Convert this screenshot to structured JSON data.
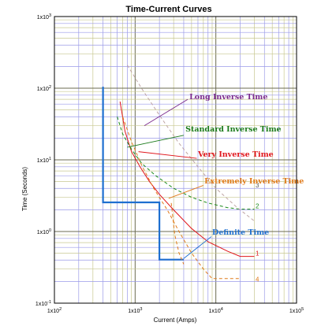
{
  "chart_data": {
    "type": "line",
    "title": "Time-Current Curves",
    "xlabel": "Current (Amps)",
    "ylabel": "Time (Seconds)",
    "x_scale": "log",
    "y_scale": "log",
    "xlim": [
      100,
      100000
    ],
    "ylim": [
      0.1,
      1000
    ],
    "grid": true,
    "x_ticks": [
      {
        "base": "1x10",
        "exp": "2"
      },
      {
        "base": "1x10",
        "exp": "3"
      },
      {
        "base": "1x10",
        "exp": "4"
      },
      {
        "base": "1x10",
        "exp": "5"
      }
    ],
    "y_ticks": [
      {
        "base": "1x10",
        "exp": "-1"
      },
      {
        "base": "1x10",
        "exp": "0"
      },
      {
        "base": "1x10",
        "exp": "1"
      },
      {
        "base": "1x10",
        "exp": "2"
      },
      {
        "base": "1x10",
        "exp": "3"
      }
    ],
    "series": [
      {
        "id": "definite",
        "color": "#1e6fd0",
        "dash": false,
        "width": 2.2,
        "points": [
          [
            400,
            105
          ],
          [
            400,
            2.55
          ],
          [
            2000,
            2.55
          ],
          [
            2000,
            0.405
          ],
          [
            4000,
            0.405
          ]
        ]
      },
      {
        "id": "curve1",
        "color": "#e0151b",
        "dash": false,
        "width": 1,
        "points": [
          [
            650,
            65
          ],
          [
            750,
            25
          ],
          [
            900,
            13
          ],
          [
            1150,
            8
          ],
          [
            1500,
            5
          ],
          [
            2000,
            3.3
          ],
          [
            3000,
            2
          ],
          [
            5000,
            1.1
          ],
          [
            8000,
            0.72
          ],
          [
            14000,
            0.53
          ],
          [
            20000,
            0.45
          ],
          [
            30000,
            0.45
          ]
        ]
      },
      {
        "id": "curve2",
        "color": "#1a8a1a",
        "dash": true,
        "width": 1,
        "points": [
          [
            600,
            40
          ],
          [
            700,
            23
          ],
          [
            900,
            14
          ],
          [
            1200,
            9
          ],
          [
            1800,
            6
          ],
          [
            3000,
            4
          ],
          [
            5000,
            3
          ],
          [
            8000,
            2.5
          ],
          [
            14000,
            2.15
          ],
          [
            20000,
            2.05
          ],
          [
            30000,
            2.05
          ]
        ]
      },
      {
        "id": "curve3",
        "color": "#bfa5a5",
        "dash": true,
        "width": 1,
        "points": [
          [
            800,
            210
          ],
          [
            1200,
            100
          ],
          [
            2000,
            42
          ],
          [
            3500,
            17
          ],
          [
            6000,
            8
          ],
          [
            10000,
            4
          ],
          [
            18000,
            2.2
          ],
          [
            30000,
            1.4
          ]
        ]
      },
      {
        "id": "curve4",
        "color": "#e07a1a",
        "dash": true,
        "width": 1,
        "points": [
          [
            700,
            40
          ],
          [
            900,
            18
          ],
          [
            1200,
            8.5
          ],
          [
            1700,
            4
          ],
          [
            2500,
            2
          ],
          [
            3500,
            1
          ],
          [
            5000,
            0.5
          ],
          [
            7000,
            0.3
          ],
          [
            9000,
            0.22
          ],
          [
            12000,
            0.22
          ],
          [
            20000,
            0.22
          ]
        ]
      },
      {
        "id": "curve4b",
        "color": "#e07a1a",
        "dash": true,
        "width": 1,
        "points": [
          [
            2800,
            2.5
          ],
          [
            3100,
            0.9
          ],
          [
            3500,
            0.5
          ],
          [
            4000,
            0.35
          ]
        ]
      }
    ],
    "curve_numbers": [
      {
        "text": "1",
        "color": "#e0151b",
        "at": [
          31000,
          0.46
        ]
      },
      {
        "text": "2",
        "color": "#1a8a1a",
        "at": [
          31000,
          2.1
        ]
      },
      {
        "text": "3",
        "color": "#555555",
        "at": [
          31000,
          4.1
        ]
      },
      {
        "text": "4",
        "color": "#e07a1a",
        "at": [
          31000,
          0.2
        ]
      }
    ],
    "annotations": [
      {
        "text": "Long Inverse Time",
        "color": "#7b2a8c",
        "at": [
          4700,
          70
        ],
        "line_to": [
          1300,
          30
        ],
        "line_from": [
          4500,
          70
        ]
      },
      {
        "text": "Standard Inverse Time",
        "color": "#1a7a1a",
        "at": [
          4200,
          25
        ],
        "line_to": [
          800,
          15
        ],
        "line_from": [
          4000,
          22
        ]
      },
      {
        "text": "Very Inverse Time",
        "color": "#e0151b",
        "at": [
          6000,
          11
        ],
        "line_to": [
          1100,
          13
        ],
        "line_from": [
          5800,
          10.5
        ]
      },
      {
        "text": "Extremely Inverse Time",
        "color": "#e07a1a",
        "at": [
          7200,
          4.7
        ],
        "line_to": [
          2600,
          2.9
        ],
        "line_from": [
          7000,
          4.4
        ]
      },
      {
        "text": "Definite Time",
        "color": "#1e6fd0",
        "at": [
          9000,
          0.9
        ],
        "line_to": [
          4000,
          0.42
        ],
        "line_from": [
          8800,
          0.85
        ]
      }
    ]
  }
}
